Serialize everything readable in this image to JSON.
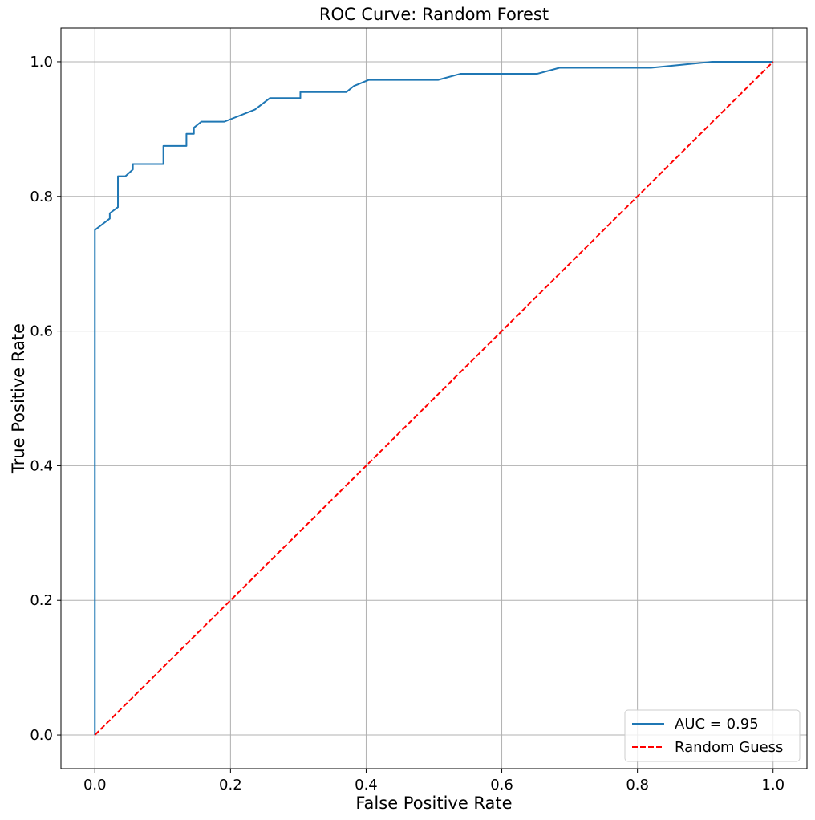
{
  "chart_data": {
    "type": "line",
    "title": "ROC Curve: Random Forest",
    "xlabel": "False Positive Rate",
    "ylabel": "True Positive Rate",
    "xlim": [
      -0.05,
      1.05
    ],
    "ylim": [
      -0.05,
      1.05
    ],
    "xticks": [
      0.0,
      0.2,
      0.4,
      0.6,
      0.8,
      1.0
    ],
    "yticks": [
      0.0,
      0.2,
      0.4,
      0.6,
      0.8,
      1.0
    ],
    "xtick_labels": [
      "0.0",
      "0.2",
      "0.4",
      "0.6",
      "0.8",
      "1.0"
    ],
    "ytick_labels": [
      "0.0",
      "0.2",
      "0.4",
      "0.6",
      "0.8",
      "1.0"
    ],
    "grid": true,
    "legend": {
      "placement": "lower-right",
      "entries": [
        "AUC = 0.95",
        "Random Guess"
      ]
    },
    "series": [
      {
        "name": "AUC = 0.95",
        "color": "#1f77b4",
        "style": "solid",
        "x": [
          0.0,
          0.0,
          0.0,
          0.022,
          0.022,
          0.034,
          0.034,
          0.045,
          0.056,
          0.056,
          0.101,
          0.101,
          0.135,
          0.135,
          0.146,
          0.146,
          0.157,
          0.191,
          0.236,
          0.258,
          0.303,
          0.303,
          0.371,
          0.382,
          0.404,
          0.506,
          0.539,
          0.652,
          0.685,
          0.82,
          0.91,
          1.0
        ],
        "y": [
          0.0,
          0.75,
          0.75,
          0.767,
          0.775,
          0.784,
          0.83,
          0.83,
          0.84,
          0.848,
          0.848,
          0.875,
          0.875,
          0.893,
          0.893,
          0.902,
          0.911,
          0.911,
          0.929,
          0.946,
          0.946,
          0.955,
          0.955,
          0.964,
          0.973,
          0.973,
          0.982,
          0.982,
          0.991,
          0.991,
          1.0,
          1.0
        ]
      },
      {
        "name": "Random Guess",
        "color": "#ff0000",
        "style": "dashed",
        "x": [
          0.0,
          1.0
        ],
        "y": [
          0.0,
          1.0
        ]
      }
    ]
  }
}
